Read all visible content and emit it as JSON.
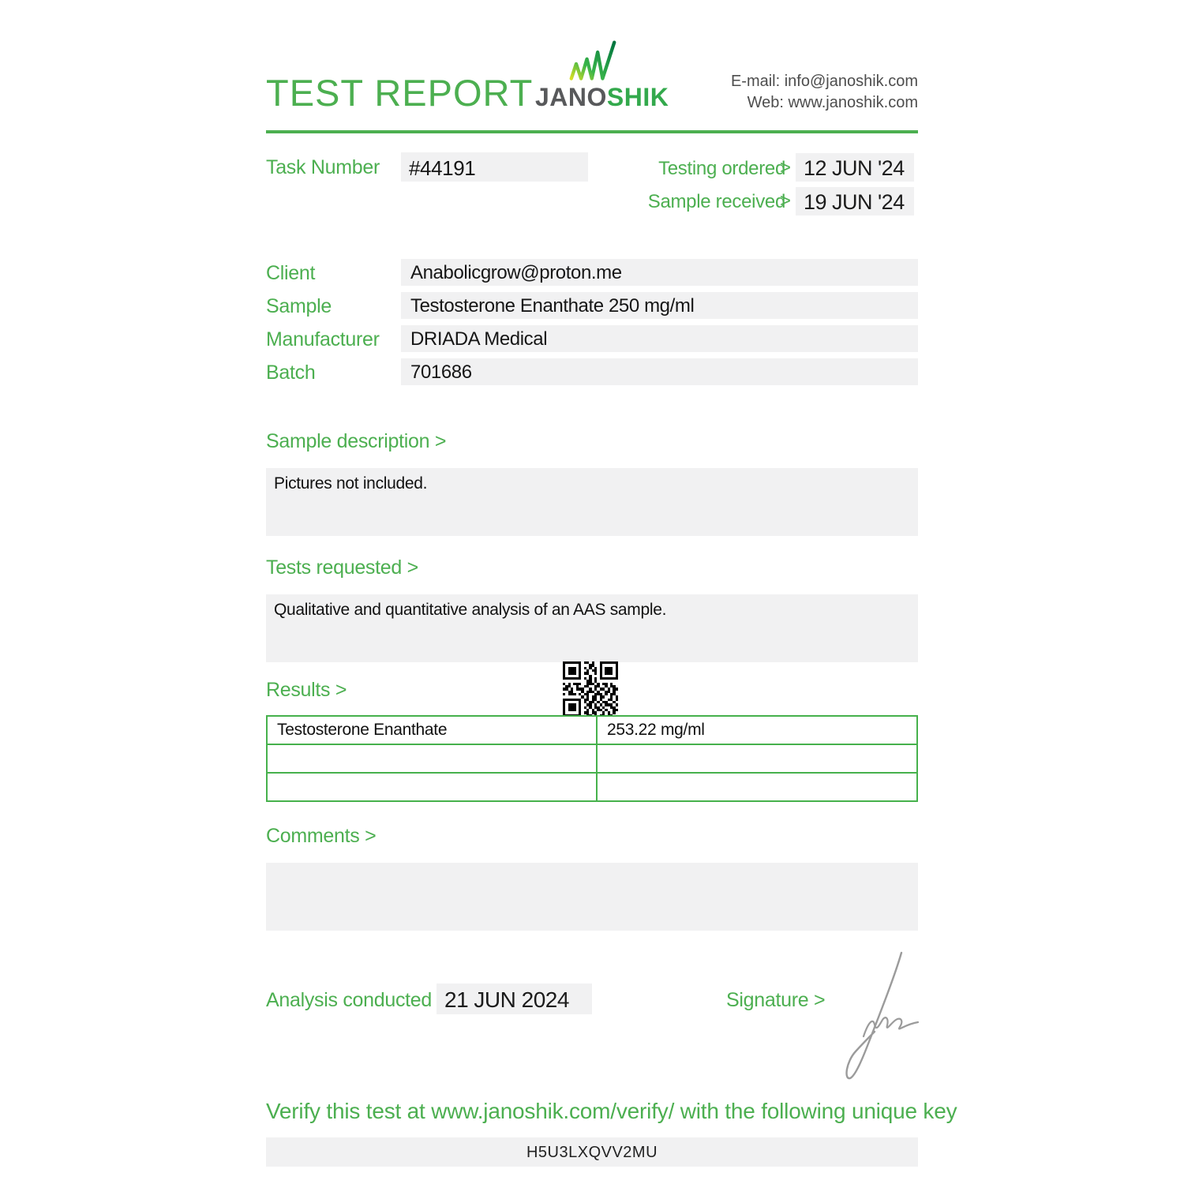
{
  "header": {
    "title": "TEST REPORT",
    "logo": {
      "text_dark": "JANO",
      "text_green": "SHIK"
    },
    "email_line": "E-mail: info@janoshik.com",
    "web_line": "Web: www.janoshik.com"
  },
  "meta": {
    "task_number_label": "Task Number",
    "task_number": "#44191",
    "testing_ordered_label": "Testing ordered",
    "testing_ordered_value": "12 JUN '24",
    "sample_received_label": "Sample received",
    "sample_received_value": "19 JUN '24",
    "arrow": ">"
  },
  "details": {
    "rows": [
      {
        "label": "Client",
        "value": "Anabolicgrow@proton.me"
      },
      {
        "label": "Sample",
        "value": "Testosterone Enanthate 250 mg/ml"
      },
      {
        "label": "Manufacturer",
        "value": "DRIADA Medical"
      },
      {
        "label": "Batch",
        "value": "701686"
      }
    ]
  },
  "sections": {
    "sample_description": {
      "label": "Sample description >",
      "content": "Pictures not included."
    },
    "tests_requested": {
      "label": "Tests requested >",
      "content": "Qualitative and quantitative analysis of an AAS sample."
    },
    "results": {
      "label": "Results >",
      "table": {
        "rows": [
          {
            "name": "Testosterone Enanthate",
            "value": "253.22 mg/ml"
          },
          {
            "name": "",
            "value": ""
          },
          {
            "name": "",
            "value": ""
          }
        ]
      }
    },
    "comments": {
      "label": "Comments >",
      "content": ""
    }
  },
  "footer": {
    "analysis_conducted_label": "Analysis conducted >",
    "analysis_date": "21 JUN 2024",
    "signature_label": "Signature >",
    "verify_text": "Verify this test at www.janoshik.com/verify/ with the following unique key",
    "verify_key": "H5U3LXQVV2MU"
  },
  "colors": {
    "accent_green": "#4CAF50",
    "box_gray": "#f1f1f2",
    "logo_dark": "#58595b",
    "logo_green": "#33a94c"
  },
  "qr": {
    "matrix": [
      "111111101101001111111",
      "100000100011001000001",
      "101110101010101011101",
      "101110100101101011101",
      "101110101100101011101",
      "100000100010001000001",
      "111111101010101111111",
      "000000000110100000000",
      "101011100111010110100",
      "011001001100110010110",
      "110101110010101101011",
      "001100010111010011010",
      "101110101100111010110",
      "000000010101101100101",
      "111111101101101001101",
      "100000101011010110010",
      "101110100110101011101",
      "101110101010110100110",
      "101110100101011010011",
      "100000101101100101010",
      "111111100110101101100"
    ]
  }
}
